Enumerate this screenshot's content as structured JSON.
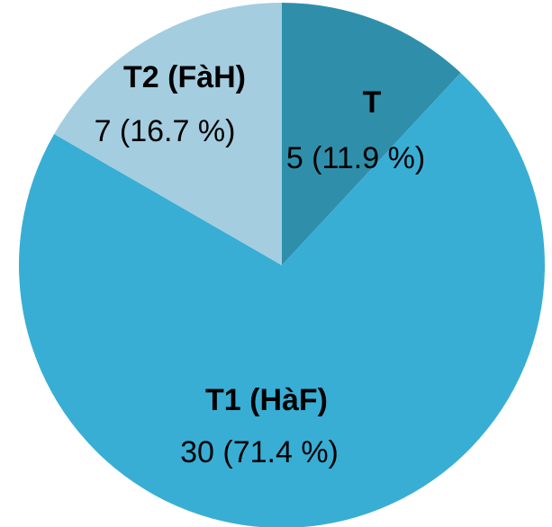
{
  "chart_data": {
    "type": "pie",
    "categories": [
      "T",
      "T1 (HàF)",
      "T2 (FàH)"
    ],
    "values": [
      5,
      30,
      7
    ],
    "value_labels": [
      "5 (11.9 %)",
      "30 (71.4 %)",
      "7 (16.7 %)"
    ],
    "colors": [
      "#2f8fab",
      "#38aed5",
      "#a4cde0"
    ]
  }
}
